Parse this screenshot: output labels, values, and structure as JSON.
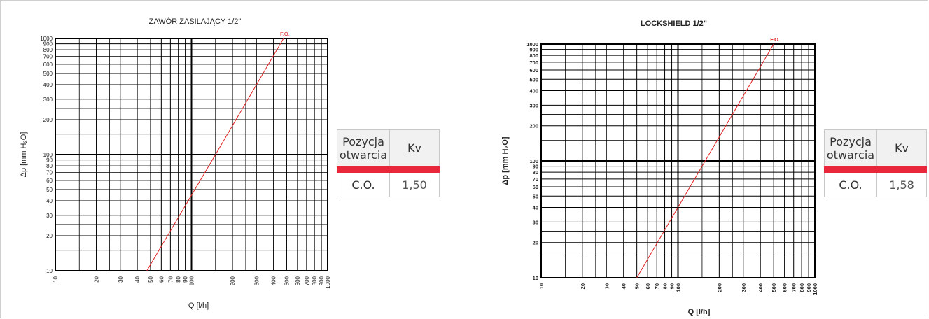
{
  "chart_data": [
    {
      "type": "line",
      "title": "ZAWÓR ZASILAJĄCY  1/2\"",
      "xlabel": "Q [l/h]",
      "ylabel": "Δp [mm H₂O]",
      "x_scale": "log",
      "y_scale": "log",
      "xlim": [
        10,
        1000
      ],
      "ylim": [
        10,
        1000
      ],
      "x_ticks": [
        10,
        20,
        30,
        40,
        50,
        60,
        70,
        80,
        90,
        100,
        200,
        300,
        400,
        500,
        600,
        700,
        800,
        900,
        1000
      ],
      "y_ticks": [
        10,
        20,
        30,
        40,
        50,
        60,
        70,
        80,
        90,
        100,
        200,
        300,
        400,
        500,
        600,
        700,
        800,
        900,
        1000
      ],
      "grid": true,
      "series": [
        {
          "name": "F.O.",
          "color": "#e02020",
          "x": [
            47,
            150,
            474
          ],
          "y": [
            10,
            100,
            1000
          ]
        }
      ]
    },
    {
      "type": "line",
      "title": "LOCKSHIELD  1/2\"",
      "xlabel": "Q [l/h]",
      "ylabel": "Δp [mm H₂O]",
      "x_scale": "log",
      "y_scale": "log",
      "xlim": [
        10,
        1000
      ],
      "ylim": [
        10,
        1000
      ],
      "x_ticks": [
        10,
        20,
        30,
        40,
        50,
        60,
        70,
        80,
        90,
        100,
        200,
        300,
        400,
        500,
        600,
        700,
        800,
        900,
        1000
      ],
      "y_ticks": [
        10,
        20,
        30,
        40,
        50,
        60,
        70,
        80,
        90,
        100,
        200,
        300,
        400,
        500,
        600,
        700,
        800,
        900,
        1000
      ],
      "grid": true,
      "series": [
        {
          "name": "F.O.",
          "color": "#e02020",
          "x": [
            50,
            158,
            500
          ],
          "y": [
            10,
            100,
            1000
          ]
        }
      ]
    }
  ],
  "tables": [
    {
      "header_position": "Pozycja otwarcia",
      "header_position_lines": [
        "Pozycja",
        "otwarcia"
      ],
      "header_kv": "Kv",
      "row_position": "C.O.",
      "row_kv": "1,50"
    },
    {
      "header_position": "Pozycja otwarcia",
      "header_position_lines": [
        "Pozycja",
        "otwarcia"
      ],
      "header_kv": "Kv",
      "row_position": "C.O.",
      "row_kv": "1,58"
    }
  ]
}
